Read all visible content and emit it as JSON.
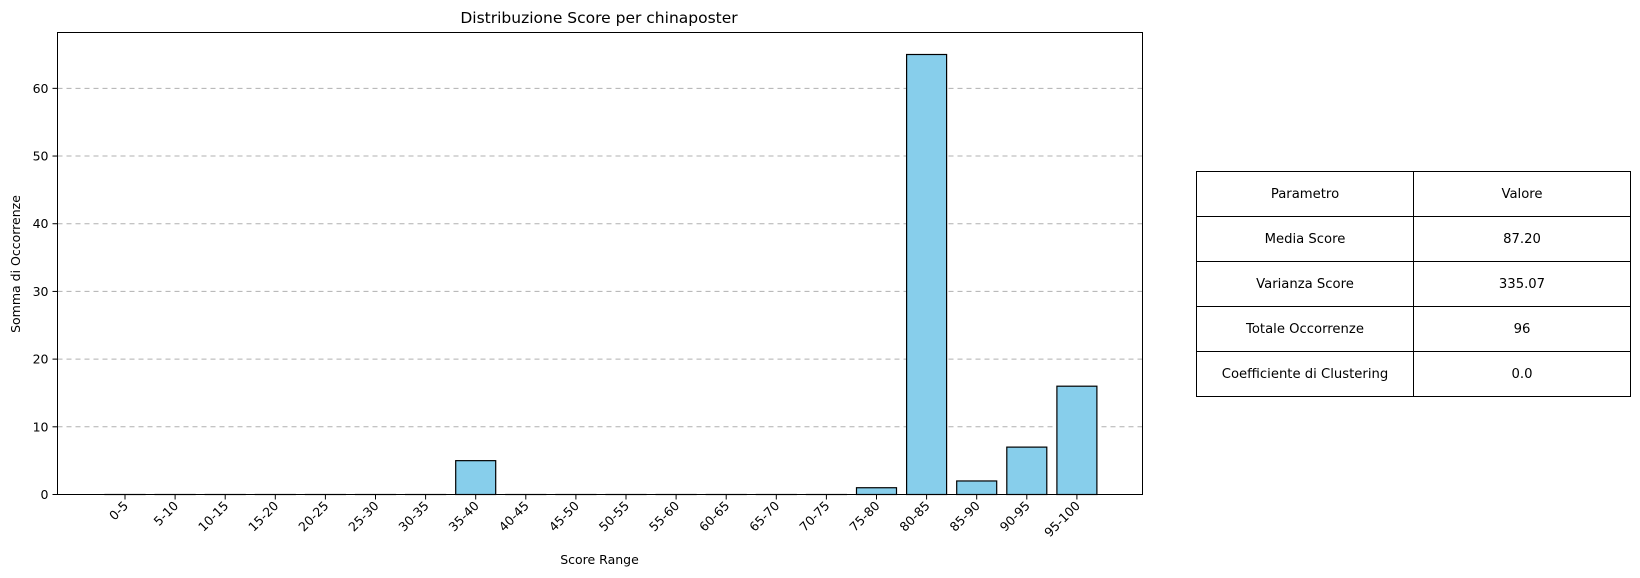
{
  "chart_data": {
    "type": "bar",
    "title": "Distribuzione Score per chinaposter",
    "xlabel": "Score Range",
    "ylabel": "Somma di Occorrenze",
    "categories": [
      "0-5",
      "5-10",
      "10-15",
      "15-20",
      "20-25",
      "25-30",
      "30-35",
      "35-40",
      "40-45",
      "45-50",
      "50-55",
      "55-60",
      "60-65",
      "65-70",
      "70-75",
      "75-80",
      "80-85",
      "85-90",
      "90-95",
      "95-100"
    ],
    "values": [
      0,
      0,
      0,
      0,
      0,
      0,
      0,
      5,
      0,
      0,
      0,
      0,
      0,
      0,
      0,
      1,
      65,
      2,
      7,
      16
    ],
    "ylim": [
      0,
      68.25
    ],
    "yticks": [
      0,
      10,
      20,
      30,
      40,
      50,
      60
    ],
    "grid": "y-dashed",
    "bar_color": "#87CEEB",
    "edge_color": "#000000"
  },
  "table": {
    "headers": [
      "Parametro",
      "Valore"
    ],
    "rows": [
      [
        "Media Score",
        "87.20"
      ],
      [
        "Varianza Score",
        "335.07"
      ],
      [
        "Totale Occorrenze",
        "96"
      ],
      [
        "Coefficiente di Clustering",
        "0.0"
      ]
    ]
  }
}
